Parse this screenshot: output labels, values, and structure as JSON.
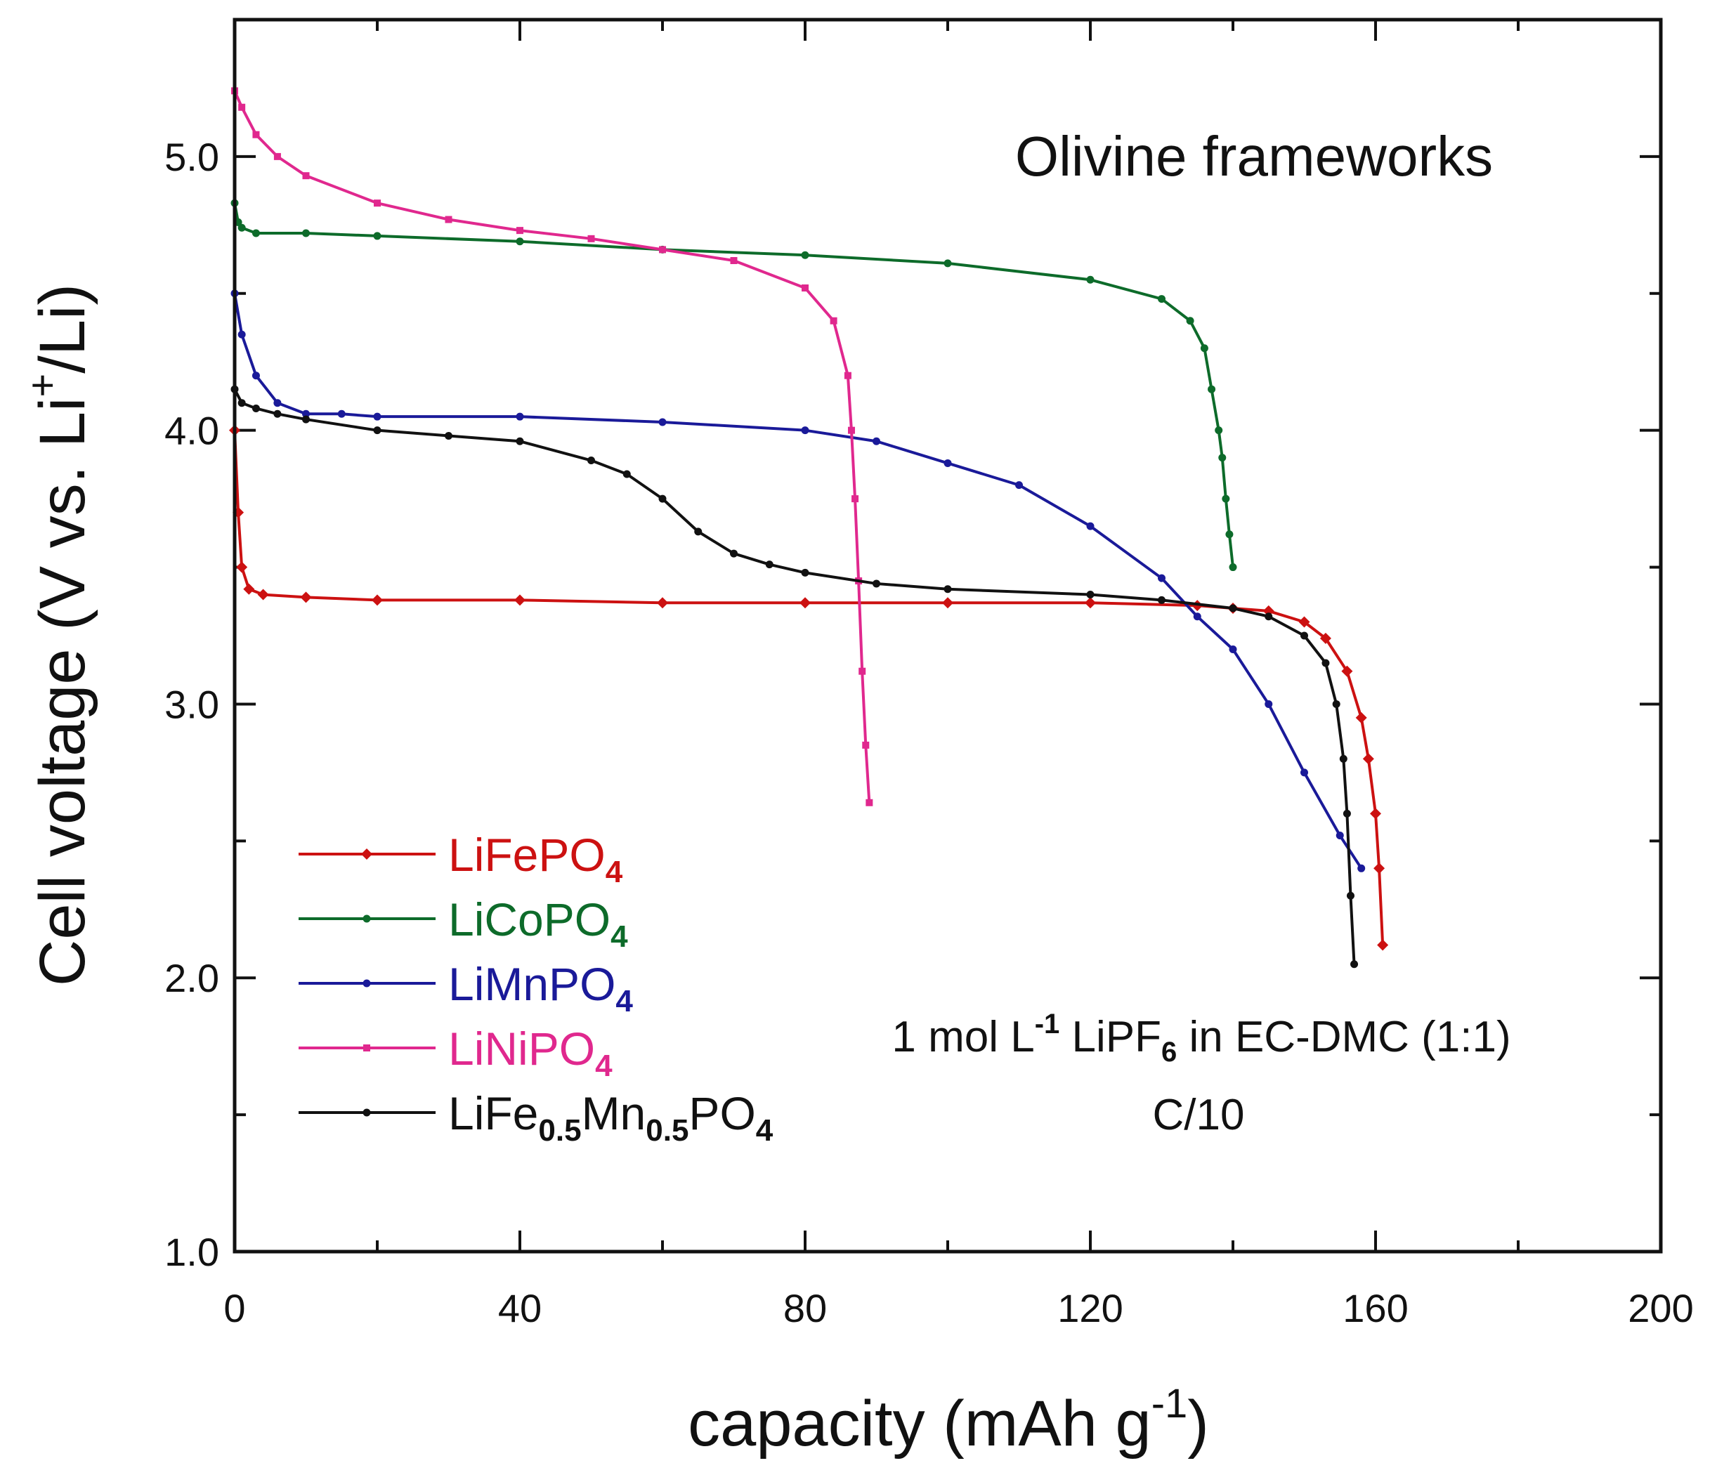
{
  "chart_data": {
    "type": "line",
    "title": "",
    "xlabel": "capacity (mAh g-1)",
    "xlabel_parts": {
      "main": "capacity (mAh g",
      "sup": "-1",
      "close": ")"
    },
    "ylabel": "Cell voltage (V vs. Li+/Li)",
    "ylabel_parts": {
      "main": "Cell voltage (V vs. Li",
      "sup": "+",
      "close": "/Li)"
    },
    "xlim": [
      0,
      200
    ],
    "ylim": [
      1.0,
      5.5
    ],
    "xticks": [
      0,
      40,
      80,
      120,
      160,
      200
    ],
    "xtick_labels": [
      "0",
      "40",
      "80",
      "120",
      "160",
      "200"
    ],
    "yticks": [
      1.0,
      2.0,
      3.0,
      4.0,
      5.0
    ],
    "ytick_labels": [
      "1.0",
      "2.0",
      "3.0",
      "4.0",
      "5.0"
    ],
    "legend_position": "bottom-left",
    "annotations": {
      "framework": "Olivine frameworks",
      "electrolyte": {
        "pre": "1 mol ",
        "unit": "L",
        "unit_sup": "-1",
        "salt": " LiPF",
        "salt_sub": "6",
        "post": " in EC-DMC (1:1)"
      },
      "rate": "C/10"
    },
    "series": [
      {
        "name": "LiFePO4",
        "label_parts": [
          {
            "t": "LiFePO"
          },
          {
            "t": "4",
            "sub": true
          }
        ],
        "color": "#cc1111",
        "marker": "diamond",
        "x": [
          0,
          0.5,
          1,
          2,
          4,
          10,
          20,
          40,
          60,
          80,
          100,
          120,
          135,
          140,
          145,
          150,
          153,
          156,
          158,
          159,
          160,
          160.5,
          161
        ],
        "y": [
          4.0,
          3.7,
          3.5,
          3.42,
          3.4,
          3.39,
          3.38,
          3.38,
          3.37,
          3.37,
          3.37,
          3.37,
          3.36,
          3.35,
          3.34,
          3.3,
          3.24,
          3.12,
          2.95,
          2.8,
          2.6,
          2.4,
          2.12
        ]
      },
      {
        "name": "LiCoPO4",
        "label_parts": [
          {
            "t": "LiCoPO"
          },
          {
            "t": "4",
            "sub": true
          }
        ],
        "color": "#0d6b2a",
        "marker": "circle",
        "x": [
          0,
          0.5,
          1,
          3,
          10,
          20,
          40,
          60,
          80,
          100,
          120,
          130,
          134,
          136,
          137,
          138,
          138.5,
          139,
          139.5,
          140
        ],
        "y": [
          4.83,
          4.76,
          4.74,
          4.72,
          4.72,
          4.71,
          4.69,
          4.66,
          4.64,
          4.61,
          4.55,
          4.48,
          4.4,
          4.3,
          4.15,
          4.0,
          3.9,
          3.75,
          3.62,
          3.5
        ]
      },
      {
        "name": "LiMnPO4",
        "label_parts": [
          {
            "t": "LiMnPO"
          },
          {
            "t": "4",
            "sub": true
          }
        ],
        "color": "#1a1a99",
        "marker": "circle",
        "x": [
          0,
          1,
          3,
          6,
          10,
          15,
          20,
          40,
          60,
          80,
          90,
          100,
          110,
          120,
          130,
          135,
          140,
          145,
          150,
          155,
          158
        ],
        "y": [
          4.5,
          4.35,
          4.2,
          4.1,
          4.06,
          4.06,
          4.05,
          4.05,
          4.03,
          4.0,
          3.96,
          3.88,
          3.8,
          3.65,
          3.46,
          3.32,
          3.2,
          3.0,
          2.75,
          2.52,
          2.4
        ]
      },
      {
        "name": "LiNiPO4",
        "label_parts": [
          {
            "t": "LiNiPO"
          },
          {
            "t": "4",
            "sub": true
          }
        ],
        "color": "#e0288e",
        "marker": "square",
        "x": [
          0,
          1,
          3,
          6,
          10,
          20,
          30,
          40,
          50,
          60,
          70,
          80,
          84,
          86,
          86.5,
          87,
          87.5,
          88,
          88.5,
          89
        ],
        "y": [
          5.24,
          5.18,
          5.08,
          5.0,
          4.93,
          4.83,
          4.77,
          4.73,
          4.7,
          4.66,
          4.62,
          4.52,
          4.4,
          4.2,
          4.0,
          3.75,
          3.45,
          3.12,
          2.85,
          2.64
        ]
      },
      {
        "name": "LiFe0.5Mn0.5PO4",
        "label_parts": [
          {
            "t": "LiFe"
          },
          {
            "t": "0.5",
            "sub": true
          },
          {
            "t": "Mn"
          },
          {
            "t": "0.5",
            "sub": true
          },
          {
            "t": "PO"
          },
          {
            "t": "4",
            "sub": true
          }
        ],
        "color": "#111111",
        "marker": "circle",
        "x": [
          0,
          1,
          3,
          6,
          10,
          20,
          30,
          40,
          50,
          55,
          60,
          65,
          70,
          75,
          80,
          90,
          100,
          120,
          130,
          140,
          145,
          150,
          153,
          154.5,
          155.5,
          156,
          156.5,
          157
        ],
        "y": [
          4.15,
          4.1,
          4.08,
          4.06,
          4.04,
          4.0,
          3.98,
          3.96,
          3.89,
          3.84,
          3.75,
          3.63,
          3.55,
          3.51,
          3.48,
          3.44,
          3.42,
          3.4,
          3.38,
          3.35,
          3.32,
          3.25,
          3.15,
          3.0,
          2.8,
          2.6,
          2.3,
          2.05
        ]
      }
    ]
  }
}
